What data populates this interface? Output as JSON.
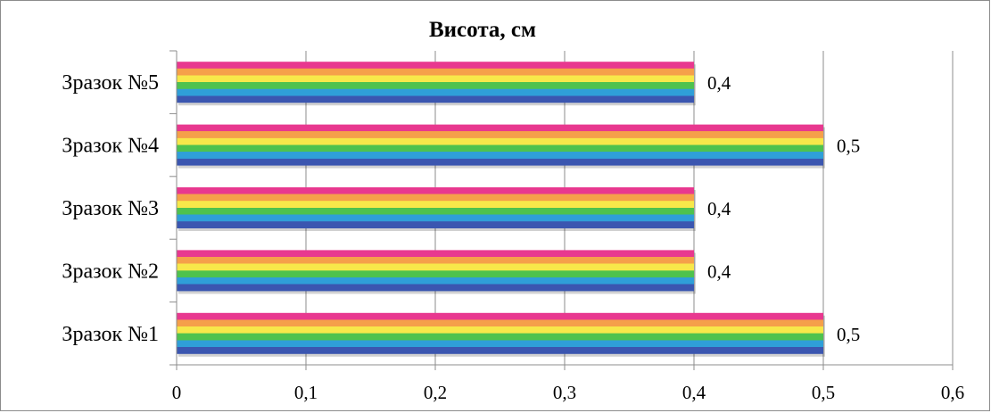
{
  "chart_data": {
    "type": "bar",
    "orientation": "horizontal",
    "title": "Висота, см",
    "xlabel": "",
    "ylabel": "",
    "categories": [
      "Зразок №1",
      "Зразок №2",
      "Зразок №3",
      "Зразок №4",
      "Зразок №5"
    ],
    "values": [
      0.5,
      0.4,
      0.4,
      0.5,
      0.4
    ],
    "value_labels": [
      "0,5",
      "0,4",
      "0,4",
      "0,5",
      "0,4"
    ],
    "xlim": [
      0,
      0.6
    ],
    "x_ticks": [
      0,
      0.1,
      0.2,
      0.3,
      0.4,
      0.5,
      0.6
    ],
    "x_tick_labels": [
      "0",
      "0,1",
      "0,2",
      "0,3",
      "0,4",
      "0,5",
      "0,6"
    ],
    "grid": "vertical",
    "legend": "none",
    "bar_fill": "rainbow-gradient",
    "bar_colors": [
      "#e8388f",
      "#f5a04a",
      "#f7e84a",
      "#4ec24e",
      "#2f9fd8",
      "#3b56b0"
    ],
    "colors": {
      "gridline": "#8c8c8c",
      "axis": "#8c8c8c",
      "frame": "#8c8c8c",
      "text": "#000000"
    }
  }
}
